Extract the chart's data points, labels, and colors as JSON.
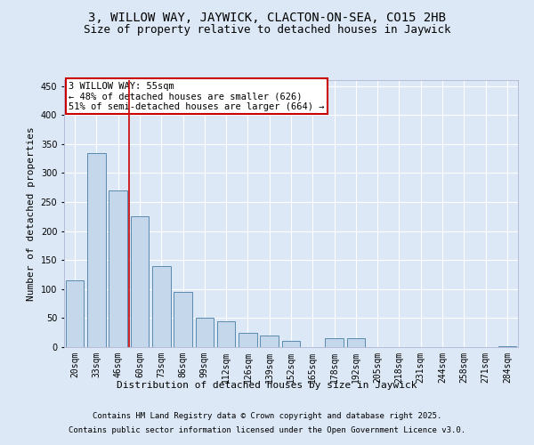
{
  "title": "3, WILLOW WAY, JAYWICK, CLACTON-ON-SEA, CO15 2HB",
  "subtitle": "Size of property relative to detached houses in Jaywick",
  "xlabel": "Distribution of detached houses by size in Jaywick",
  "ylabel": "Number of detached properties",
  "categories": [
    "20sqm",
    "33sqm",
    "46sqm",
    "60sqm",
    "73sqm",
    "86sqm",
    "99sqm",
    "112sqm",
    "126sqm",
    "139sqm",
    "152sqm",
    "165sqm",
    "178sqm",
    "192sqm",
    "205sqm",
    "218sqm",
    "231sqm",
    "244sqm",
    "258sqm",
    "271sqm",
    "284sqm"
  ],
  "values": [
    115,
    335,
    270,
    225,
    140,
    95,
    50,
    45,
    25,
    20,
    10,
    0,
    15,
    15,
    0,
    0,
    0,
    0,
    0,
    0,
    2
  ],
  "bar_color": "#c5d8eb",
  "bar_edge_color": "#5a8ab0",
  "vline_pos": 2.5,
  "vline_color": "#cc0000",
  "ylim": [
    0,
    460
  ],
  "yticks": [
    0,
    50,
    100,
    150,
    200,
    250,
    300,
    350,
    400,
    450
  ],
  "annotation_title": "3 WILLOW WAY: 55sqm",
  "annotation_line1": "← 48% of detached houses are smaller (626)",
  "annotation_line2": "51% of semi-detached houses are larger (664) →",
  "annotation_box_edgecolor": "#cc0000",
  "footnote1": "Contains HM Land Registry data © Crown copyright and database right 2025.",
  "footnote2": "Contains public sector information licensed under the Open Government Licence v3.0.",
  "bg_color": "#dce8f5",
  "grid_color": "white",
  "title_fontsize": 10,
  "subtitle_fontsize": 9,
  "xlabel_fontsize": 8,
  "ylabel_fontsize": 8,
  "tick_fontsize": 7,
  "annotation_fontsize": 7.5,
  "footnote_fontsize": 6.5
}
